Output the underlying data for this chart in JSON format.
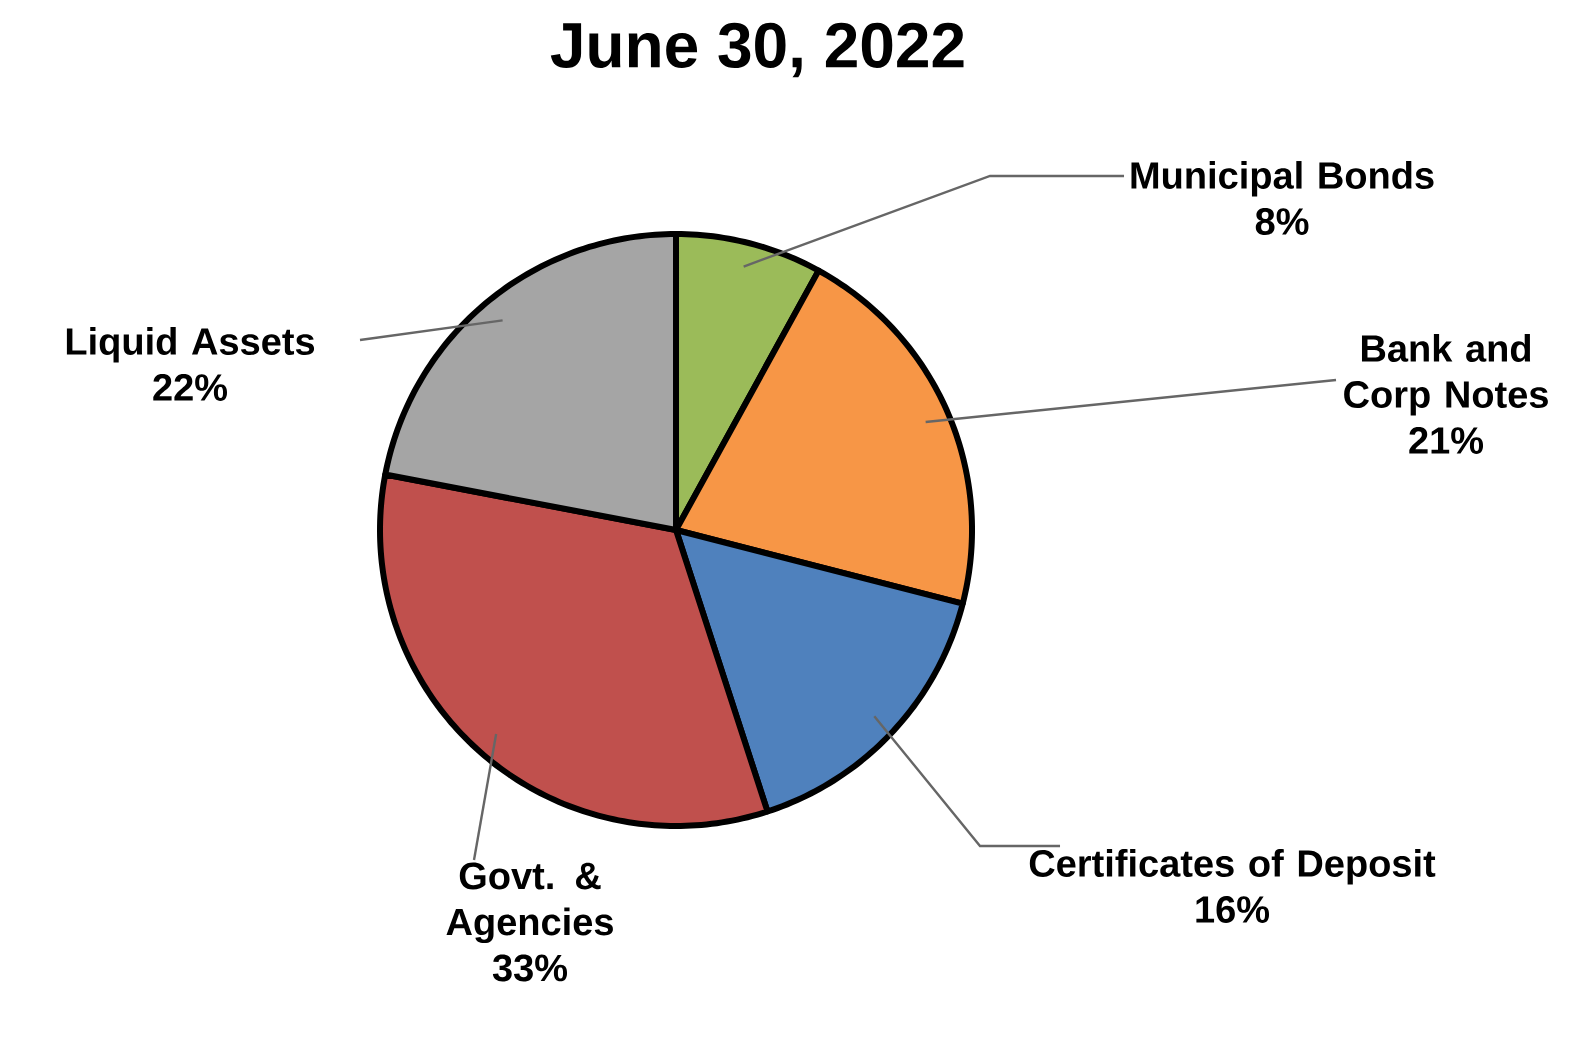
{
  "chart_data": {
    "type": "pie",
    "title": "June 30, 2022",
    "categories": [
      "Municipal Bonds",
      "Bank and Corp Notes",
      "Certificates of Deposit",
      "Govt. & Agencies",
      "Liquid Assets"
    ],
    "values": [
      8,
      21,
      16,
      33,
      22
    ],
    "value_labels": [
      "8%",
      "21%",
      "16%",
      "33%",
      "22%"
    ],
    "colors": [
      "#9bbb59",
      "#f79646",
      "#4f81bd",
      "#c0504d",
      "#a5a5a5"
    ]
  }
}
